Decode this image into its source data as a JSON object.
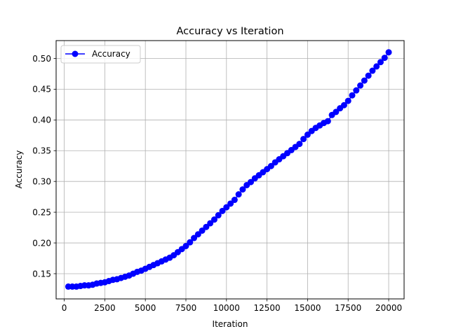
{
  "chart_data": {
    "type": "line",
    "title": "Accuracy vs Iteration",
    "xlabel": "Iteration",
    "ylabel": "Accuracy",
    "xlim": [
      -500,
      20950
    ],
    "ylim": [
      0.109,
      0.529
    ],
    "xticks": [
      0,
      2500,
      5000,
      7500,
      10000,
      12500,
      15000,
      17500,
      20000
    ],
    "yticks": [
      0.15,
      0.2,
      0.25,
      0.3,
      0.35,
      0.4,
      0.45,
      0.5
    ],
    "ytick_labels": [
      "0.15",
      "0.20",
      "0.25",
      "0.30",
      "0.35",
      "0.40",
      "0.45",
      "0.50"
    ],
    "grid": true,
    "legend": "top-left",
    "series": [
      {
        "name": "Accuracy",
        "color": "#0000ff",
        "marker": "circle",
        "x": [
          250,
          500,
          750,
          1000,
          1250,
          1500,
          1750,
          2000,
          2250,
          2500,
          2750,
          3000,
          3250,
          3500,
          3750,
          4000,
          4250,
          4500,
          4750,
          5000,
          5250,
          5500,
          5750,
          6000,
          6250,
          6500,
          6750,
          7000,
          7250,
          7500,
          7750,
          8000,
          8250,
          8500,
          8750,
          9000,
          9250,
          9500,
          9750,
          10000,
          10250,
          10500,
          10750,
          11000,
          11250,
          11500,
          11750,
          12000,
          12250,
          12500,
          12750,
          13000,
          13250,
          13500,
          13750,
          14000,
          14250,
          14500,
          14750,
          15000,
          15250,
          15500,
          15750,
          16000,
          16250,
          16500,
          16750,
          17000,
          17250,
          17500,
          17750,
          18000,
          18250,
          18500,
          18750,
          19000,
          19250,
          19500,
          19750,
          20000
        ],
        "values": [
          0.129,
          0.129,
          0.129,
          0.13,
          0.131,
          0.131,
          0.132,
          0.134,
          0.135,
          0.136,
          0.138,
          0.14,
          0.141,
          0.143,
          0.145,
          0.147,
          0.15,
          0.153,
          0.155,
          0.158,
          0.161,
          0.164,
          0.167,
          0.17,
          0.173,
          0.176,
          0.18,
          0.185,
          0.19,
          0.195,
          0.201,
          0.208,
          0.214,
          0.22,
          0.226,
          0.232,
          0.238,
          0.245,
          0.252,
          0.258,
          0.264,
          0.27,
          0.279,
          0.287,
          0.294,
          0.299,
          0.305,
          0.31,
          0.315,
          0.32,
          0.325,
          0.331,
          0.336,
          0.341,
          0.346,
          0.351,
          0.356,
          0.361,
          0.369,
          0.376,
          0.382,
          0.387,
          0.391,
          0.395,
          0.398,
          0.408,
          0.413,
          0.419,
          0.424,
          0.431,
          0.44,
          0.448,
          0.456,
          0.464,
          0.472,
          0.48,
          0.487,
          0.494,
          0.501,
          0.51
        ]
      }
    ]
  }
}
